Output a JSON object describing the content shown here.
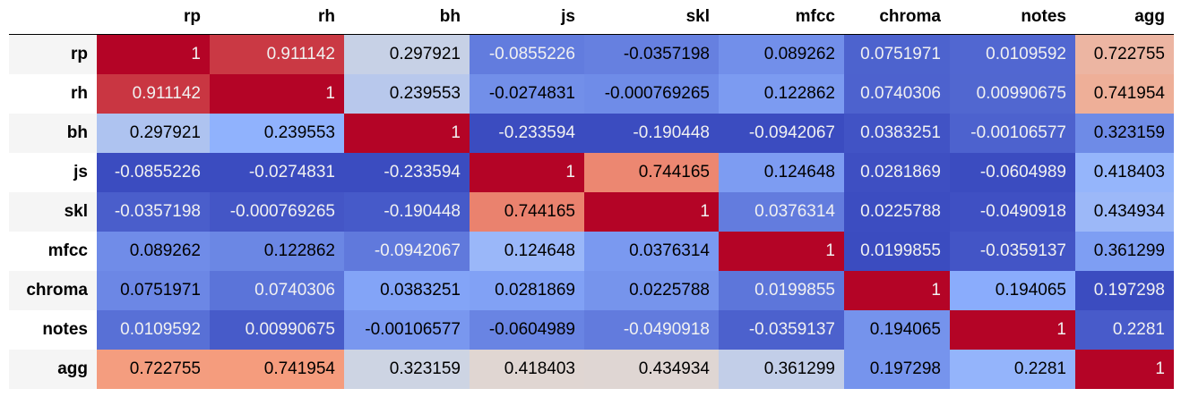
{
  "chart_data": {
    "type": "heatmap",
    "columns": [
      "rp",
      "rh",
      "bh",
      "js",
      "skl",
      "mfcc",
      "chroma",
      "notes",
      "agg"
    ],
    "rows": [
      "rp",
      "rh",
      "bh",
      "js",
      "skl",
      "mfcc",
      "chroma",
      "notes",
      "agg"
    ],
    "values": [
      [
        "1",
        "0.911142",
        "0.297921",
        "-0.0855226",
        "-0.0357198",
        "0.089262",
        "0.0751971",
        "0.0109592",
        "0.722755"
      ],
      [
        "0.911142",
        "1",
        "0.239553",
        "-0.0274831",
        "-0.000769265",
        "0.122862",
        "0.0740306",
        "0.00990675",
        "0.741954"
      ],
      [
        "0.297921",
        "0.239553",
        "1",
        "-0.233594",
        "-0.190448",
        "-0.0942067",
        "0.0383251",
        "-0.00106577",
        "0.323159"
      ],
      [
        "-0.0855226",
        "-0.0274831",
        "-0.233594",
        "1",
        "0.744165",
        "0.124648",
        "0.0281869",
        "-0.0604989",
        "0.418403"
      ],
      [
        "-0.0357198",
        "-0.000769265",
        "-0.190448",
        "0.744165",
        "1",
        "0.0376314",
        "0.0225788",
        "-0.0490918",
        "0.434934"
      ],
      [
        "0.089262",
        "0.122862",
        "-0.0942067",
        "0.124648",
        "0.0376314",
        "1",
        "0.0199855",
        "-0.0359137",
        "0.361299"
      ],
      [
        "0.0751971",
        "0.0740306",
        "0.0383251",
        "0.0281869",
        "0.0225788",
        "0.0199855",
        "1",
        "0.194065",
        "0.197298"
      ],
      [
        "0.0109592",
        "0.00990675",
        "-0.00106577",
        "-0.0604989",
        "-0.0490918",
        "-0.0359137",
        "0.194065",
        "1",
        "0.2281"
      ],
      [
        "0.722755",
        "0.741954",
        "0.323159",
        "0.418403",
        "0.434934",
        "0.361299",
        "0.197298",
        "0.2281",
        "1"
      ]
    ],
    "colormap": "coolwarm",
    "color_mode": "per-column",
    "text_color_light": "#f1f1f1",
    "text_color_dark": "#000000"
  }
}
